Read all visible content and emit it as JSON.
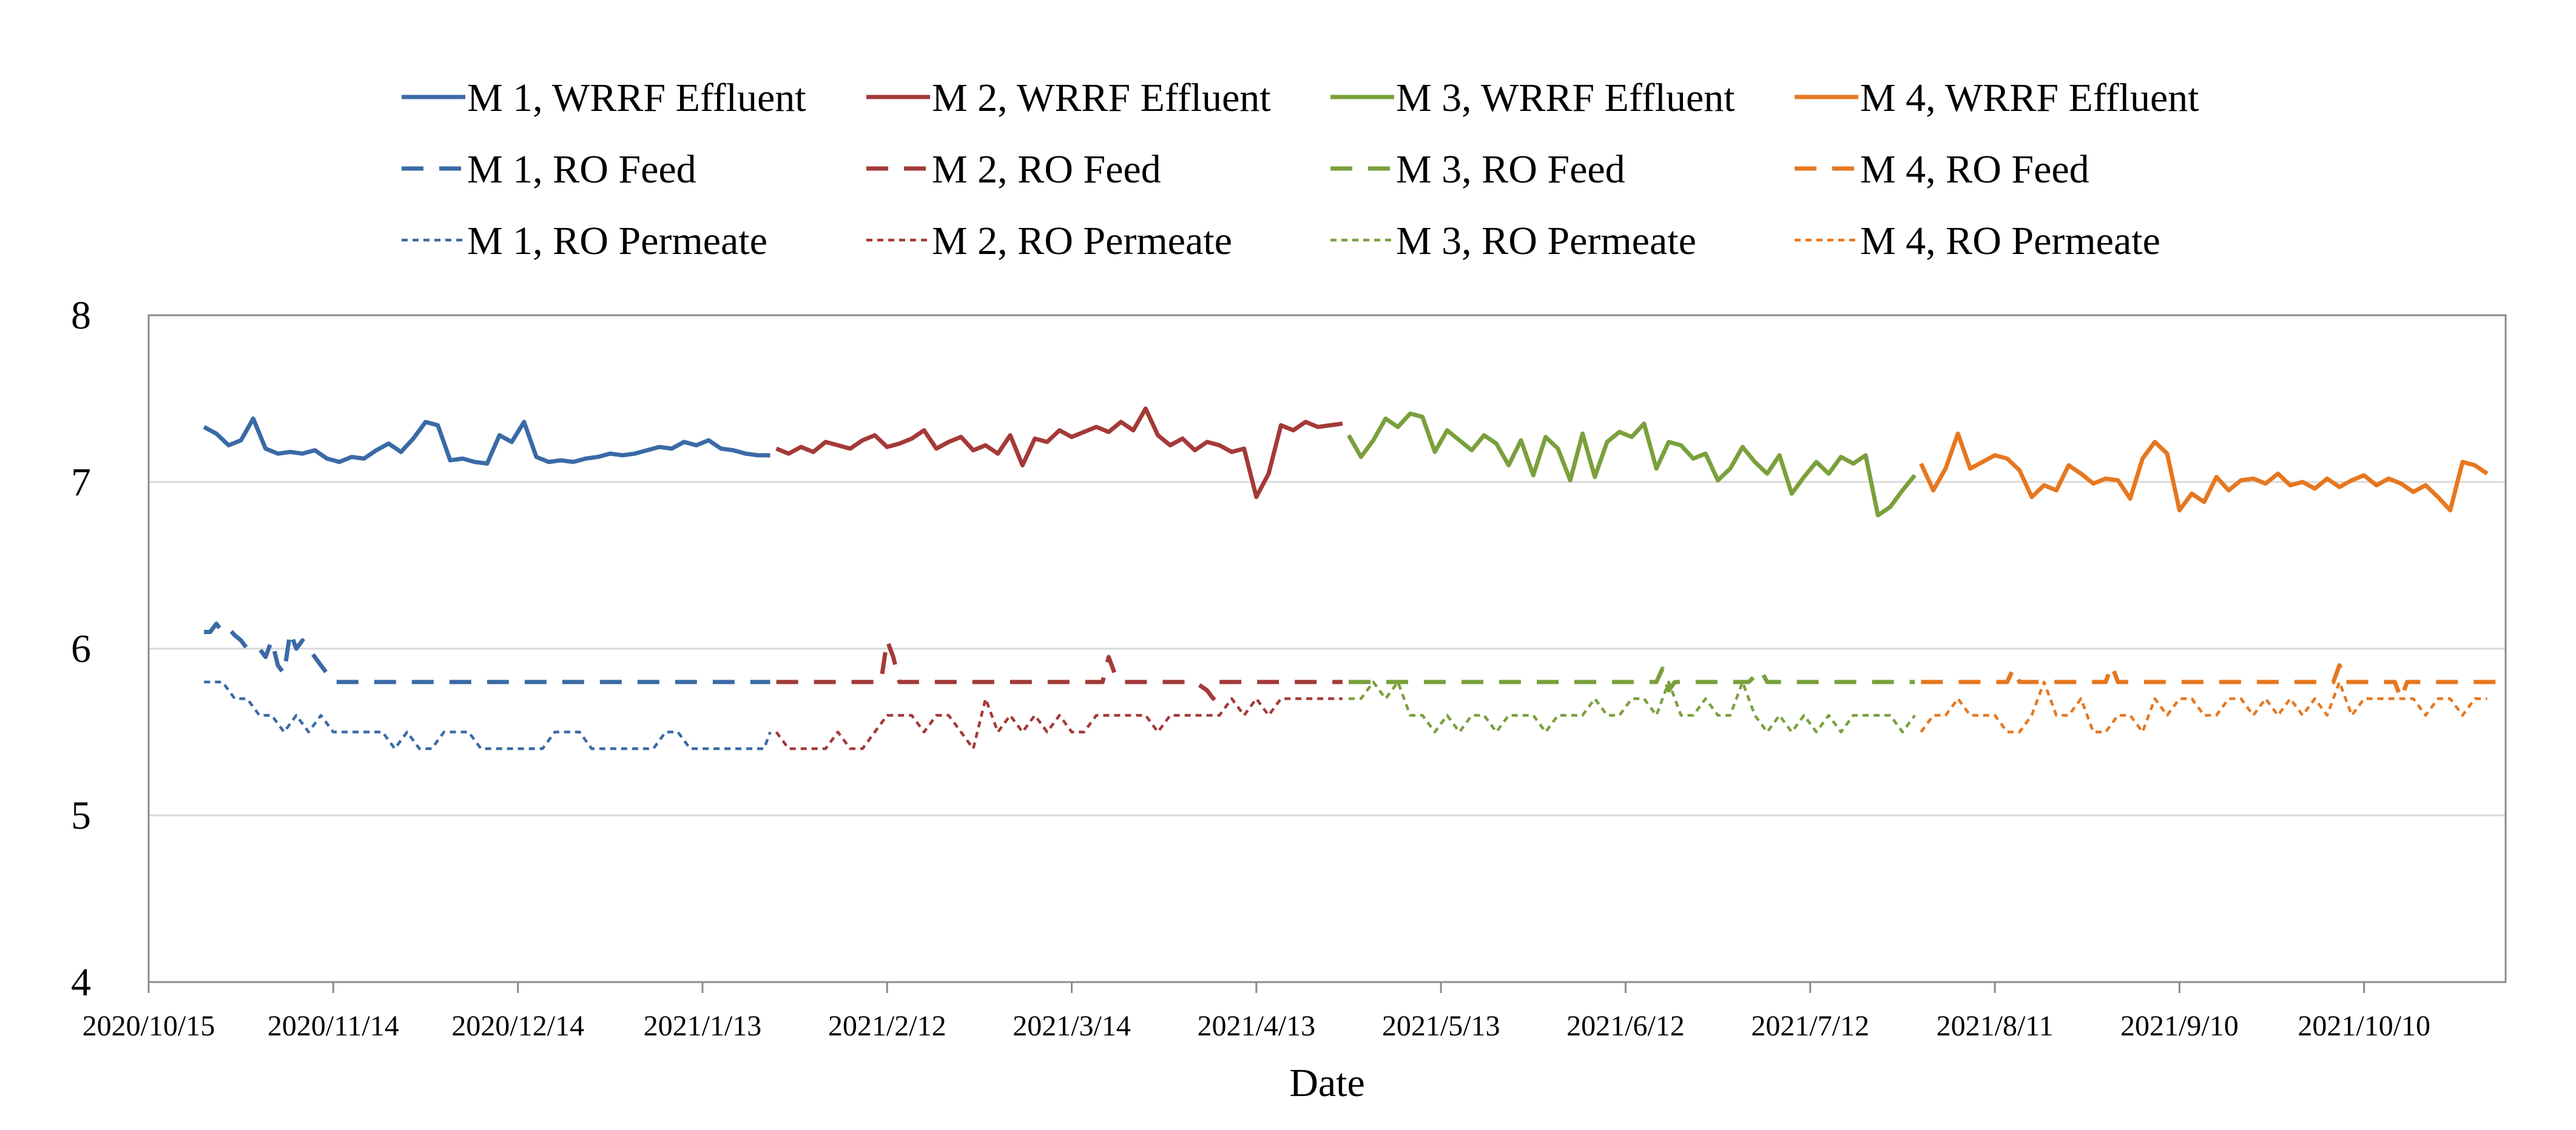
{
  "chart_data": {
    "type": "line",
    "title": "",
    "xlabel": "Date",
    "ylabel": "",
    "ylim": [
      4,
      8
    ],
    "yticks": [
      4,
      5,
      6,
      7,
      8
    ],
    "xlim_days": [
      0,
      383
    ],
    "xtick_labels": [
      "2020/10/15",
      "2020/11/14",
      "2020/12/14",
      "2021/1/13",
      "2021/2/12",
      "2021/3/14",
      "2021/4/13",
      "2021/5/13",
      "2021/6/12",
      "2021/7/12",
      "2021/8/11",
      "2021/9/10",
      "2021/10/10"
    ],
    "xtick_days": [
      0,
      30,
      60,
      90,
      120,
      150,
      180,
      210,
      240,
      270,
      300,
      330,
      360
    ],
    "x_unit": "days since 2020/10/15",
    "grid": "horizontal",
    "legend_position": "top",
    "colors": {
      "M1": "#3a6aa6",
      "M2": "#a33a38",
      "M3": "#7aa03c",
      "M4": "#e6771f"
    },
    "series": [
      {
        "name": "M 1, WRRF Effluent",
        "color": "#3a6aa6",
        "style": "solid",
        "x": [
          9,
          11,
          13,
          15,
          17,
          19,
          21,
          23,
          25,
          27,
          29,
          31,
          33,
          35,
          37,
          39,
          41,
          43,
          45,
          47,
          49,
          51,
          53,
          55,
          57,
          59,
          61,
          63,
          65,
          67,
          69,
          71,
          73,
          75,
          77,
          79,
          81,
          83,
          85,
          87,
          89,
          91,
          93,
          95,
          97,
          99,
          101
        ],
        "y": [
          7.33,
          7.29,
          7.22,
          7.25,
          7.38,
          7.2,
          7.17,
          7.18,
          7.17,
          7.19,
          7.14,
          7.12,
          7.15,
          7.14,
          7.19,
          7.23,
          7.18,
          7.26,
          7.36,
          7.34,
          7.13,
          7.14,
          7.12,
          7.11,
          7.28,
          7.24,
          7.36,
          7.15,
          7.12,
          7.13,
          7.12,
          7.14,
          7.15,
          7.17,
          7.16,
          7.17,
          7.19,
          7.21,
          7.2,
          7.24,
          7.22,
          7.25,
          7.2,
          7.19,
          7.17,
          7.16,
          7.16
        ]
      },
      {
        "name": "M 2, WRRF Effluent",
        "color": "#a33a38",
        "style": "solid",
        "x": [
          102,
          104,
          106,
          108,
          110,
          112,
          114,
          116,
          118,
          120,
          122,
          124,
          126,
          128,
          130,
          132,
          134,
          136,
          138,
          140,
          142,
          144,
          146,
          148,
          150,
          152,
          154,
          156,
          158,
          160,
          162,
          164,
          166,
          168,
          170,
          172,
          174,
          176,
          178,
          180,
          182,
          184,
          186,
          188,
          190,
          192,
          194
        ],
        "y": [
          7.2,
          7.17,
          7.21,
          7.18,
          7.24,
          7.22,
          7.2,
          7.25,
          7.28,
          7.21,
          7.23,
          7.26,
          7.31,
          7.2,
          7.24,
          7.27,
          7.19,
          7.22,
          7.17,
          7.28,
          7.1,
          7.26,
          7.24,
          7.31,
          7.27,
          7.3,
          7.33,
          7.3,
          7.36,
          7.31,
          7.44,
          7.28,
          7.22,
          7.26,
          7.19,
          7.24,
          7.22,
          7.18,
          7.2,
          6.91,
          7.05,
          7.34,
          7.31,
          7.36,
          7.33,
          7.34,
          7.35
        ]
      },
      {
        "name": "M 3, WRRF Effluent",
        "color": "#7aa03c",
        "style": "solid",
        "x": [
          195,
          197,
          199,
          201,
          203,
          205,
          207,
          209,
          211,
          213,
          215,
          217,
          219,
          221,
          223,
          225,
          227,
          229,
          231,
          233,
          235,
          237,
          239,
          241,
          243,
          245,
          247,
          249,
          251,
          253,
          255,
          257,
          259,
          261,
          263,
          265,
          267,
          269,
          271,
          273,
          275,
          277,
          279,
          281,
          283,
          285,
          287
        ],
        "y": [
          7.28,
          7.15,
          7.25,
          7.38,
          7.33,
          7.41,
          7.39,
          7.18,
          7.31,
          7.25,
          7.19,
          7.28,
          7.23,
          7.1,
          7.25,
          7.04,
          7.27,
          7.2,
          7.01,
          7.29,
          7.03,
          7.24,
          7.3,
          7.27,
          7.35,
          7.08,
          7.24,
          7.22,
          7.14,
          7.17,
          7.01,
          7.08,
          7.21,
          7.12,
          7.05,
          7.16,
          6.93,
          7.03,
          7.12,
          7.05,
          7.15,
          7.11,
          7.16,
          6.8,
          6.85,
          6.95,
          7.04
        ]
      },
      {
        "name": "M 4, WRRF Effluent",
        "color": "#e6771f",
        "style": "solid",
        "x": [
          288,
          290,
          292,
          294,
          296,
          298,
          300,
          302,
          304,
          306,
          308,
          310,
          312,
          314,
          316,
          318,
          320,
          322,
          324,
          326,
          328,
          330,
          332,
          334,
          336,
          338,
          340,
          342,
          344,
          346,
          348,
          350,
          352,
          354,
          356,
          358,
          360,
          362,
          364,
          366,
          368,
          370,
          372,
          374,
          376,
          378,
          380
        ],
        "y": [
          7.11,
          6.95,
          7.08,
          7.29,
          7.08,
          7.12,
          7.16,
          7.14,
          7.07,
          6.91,
          6.98,
          6.95,
          7.1,
          7.05,
          6.99,
          7.02,
          7.01,
          6.9,
          7.14,
          7.24,
          7.17,
          6.83,
          6.93,
          6.88,
          7.03,
          6.95,
          7.01,
          7.02,
          6.99,
          7.05,
          6.98,
          7.0,
          6.96,
          7.02,
          6.97,
          7.01,
          7.04,
          6.98,
          7.02,
          6.99,
          6.94,
          6.98,
          6.91,
          6.83,
          7.12,
          7.1,
          7.05
        ]
      },
      {
        "name": "M 1, RO Feed",
        "color": "#3a6aa6",
        "style": "dash",
        "x": [
          9,
          10,
          11,
          12,
          13,
          14,
          15,
          16,
          17,
          18,
          19,
          20,
          21,
          22,
          23,
          24,
          25,
          26,
          27,
          28,
          29,
          30,
          40,
          50,
          60,
          70,
          80,
          90,
          95,
          101
        ],
        "y": [
          6.1,
          6.1,
          6.15,
          6.1,
          6.12,
          6.08,
          6.05,
          6.0,
          6.0,
          6.0,
          5.95,
          6.05,
          5.9,
          5.85,
          6.1,
          6.0,
          6.05,
          6.0,
          5.95,
          5.9,
          5.85,
          5.8,
          5.8,
          5.8,
          5.8,
          5.8,
          5.8,
          5.8,
          5.8,
          5.8
        ]
      },
      {
        "name": "M 2, RO Feed",
        "color": "#a33a38",
        "style": "dash",
        "x": [
          102,
          110,
          115,
          119,
          120,
          121,
          122,
          130,
          140,
          150,
          155,
          156,
          157,
          158,
          165,
          170,
          172,
          173,
          174,
          180,
          190,
          194
        ],
        "y": [
          5.8,
          5.8,
          5.8,
          5.8,
          6.05,
          5.95,
          5.8,
          5.8,
          5.8,
          5.8,
          5.8,
          5.95,
          5.85,
          5.8,
          5.8,
          5.8,
          5.75,
          5.7,
          5.8,
          5.8,
          5.8,
          5.8
        ]
      },
      {
        "name": "M 3, RO Feed",
        "color": "#7aa03c",
        "style": "dash",
        "x": [
          195,
          200,
          210,
          220,
          230,
          240,
          245,
          246,
          247,
          248,
          255,
          260,
          262,
          263,
          264,
          270,
          280,
          287
        ],
        "y": [
          5.8,
          5.8,
          5.8,
          5.8,
          5.8,
          5.8,
          5.8,
          5.88,
          5.75,
          5.8,
          5.8,
          5.8,
          5.87,
          5.8,
          5.8,
          5.8,
          5.8,
          5.8
        ]
      },
      {
        "name": "M 4, RO Feed",
        "color": "#e6771f",
        "style": "dash",
        "x": [
          288,
          300,
          302,
          303,
          304,
          310,
          318,
          319,
          320,
          330,
          350,
          355,
          356,
          357,
          365,
          366,
          367,
          374,
          375,
          376,
          383
        ],
        "y": [
          5.8,
          5.8,
          5.8,
          5.88,
          5.8,
          5.8,
          5.8,
          5.9,
          5.8,
          5.8,
          5.8,
          5.8,
          5.9,
          5.8,
          5.8,
          5.7,
          5.8,
          5.8,
          5.8,
          5.8,
          5.8
        ]
      },
      {
        "name": "M 1, RO Permeate",
        "color": "#3a6aa6",
        "style": "dot",
        "x": [
          9,
          12,
          14,
          16,
          18,
          20,
          22,
          24,
          26,
          28,
          30,
          32,
          34,
          36,
          38,
          40,
          42,
          44,
          46,
          48,
          50,
          52,
          54,
          56,
          58,
          60,
          62,
          64,
          66,
          68,
          70,
          72,
          74,
          76,
          78,
          80,
          82,
          84,
          86,
          88,
          90,
          92,
          94,
          96,
          98,
          100,
          101
        ],
        "y": [
          5.8,
          5.8,
          5.7,
          5.7,
          5.6,
          5.6,
          5.5,
          5.6,
          5.5,
          5.6,
          5.5,
          5.5,
          5.5,
          5.5,
          5.5,
          5.4,
          5.5,
          5.4,
          5.4,
          5.5,
          5.5,
          5.5,
          5.4,
          5.4,
          5.4,
          5.4,
          5.4,
          5.4,
          5.5,
          5.5,
          5.5,
          5.4,
          5.4,
          5.4,
          5.4,
          5.4,
          5.4,
          5.5,
          5.5,
          5.4,
          5.4,
          5.4,
          5.4,
          5.4,
          5.4,
          5.4,
          5.5
        ]
      },
      {
        "name": "M 2, RO Permeate",
        "color": "#a33a38",
        "style": "dot",
        "x": [
          102,
          104,
          106,
          108,
          110,
          112,
          114,
          116,
          118,
          120,
          122,
          124,
          126,
          128,
          130,
          132,
          134,
          136,
          138,
          140,
          142,
          144,
          146,
          148,
          150,
          152,
          154,
          156,
          158,
          160,
          162,
          164,
          166,
          168,
          170,
          172,
          174,
          176,
          178,
          180,
          182,
          184,
          186,
          188,
          190,
          192,
          194
        ],
        "y": [
          5.5,
          5.4,
          5.4,
          5.4,
          5.4,
          5.5,
          5.4,
          5.4,
          5.5,
          5.6,
          5.6,
          5.6,
          5.5,
          5.6,
          5.6,
          5.5,
          5.4,
          5.7,
          5.5,
          5.6,
          5.5,
          5.6,
          5.5,
          5.6,
          5.5,
          5.5,
          5.6,
          5.6,
          5.6,
          5.6,
          5.6,
          5.5,
          5.6,
          5.6,
          5.6,
          5.6,
          5.6,
          5.7,
          5.6,
          5.7,
          5.6,
          5.7,
          5.7,
          5.7,
          5.7,
          5.7,
          5.7
        ]
      },
      {
        "name": "M 3, RO Permeate",
        "color": "#7aa03c",
        "style": "dot",
        "x": [
          195,
          197,
          199,
          201,
          203,
          205,
          207,
          209,
          211,
          213,
          215,
          217,
          219,
          221,
          223,
          225,
          227,
          229,
          231,
          233,
          235,
          237,
          239,
          241,
          243,
          245,
          247,
          249,
          251,
          253,
          255,
          257,
          259,
          261,
          263,
          265,
          267,
          269,
          271,
          273,
          275,
          277,
          279,
          281,
          283,
          285,
          287
        ],
        "y": [
          5.7,
          5.7,
          5.8,
          5.7,
          5.8,
          5.6,
          5.6,
          5.5,
          5.6,
          5.5,
          5.6,
          5.6,
          5.5,
          5.6,
          5.6,
          5.6,
          5.5,
          5.6,
          5.6,
          5.6,
          5.7,
          5.6,
          5.6,
          5.7,
          5.7,
          5.6,
          5.8,
          5.6,
          5.6,
          5.7,
          5.6,
          5.6,
          5.8,
          5.6,
          5.5,
          5.6,
          5.5,
          5.6,
          5.5,
          5.6,
          5.5,
          5.6,
          5.6,
          5.6,
          5.6,
          5.5,
          5.6
        ]
      },
      {
        "name": "M 4, RO Permeate",
        "color": "#e6771f",
        "style": "dot",
        "x": [
          288,
          290,
          292,
          294,
          296,
          298,
          300,
          302,
          304,
          306,
          308,
          310,
          312,
          314,
          316,
          318,
          320,
          322,
          324,
          326,
          328,
          330,
          332,
          334,
          336,
          338,
          340,
          342,
          344,
          346,
          348,
          350,
          352,
          354,
          356,
          358,
          360,
          362,
          364,
          366,
          368,
          370,
          372,
          374,
          376,
          378,
          380
        ],
        "y": [
          5.5,
          5.6,
          5.6,
          5.7,
          5.6,
          5.6,
          5.6,
          5.5,
          5.5,
          5.6,
          5.8,
          5.6,
          5.6,
          5.7,
          5.5,
          5.5,
          5.6,
          5.6,
          5.5,
          5.7,
          5.6,
          5.7,
          5.7,
          5.6,
          5.6,
          5.7,
          5.7,
          5.6,
          5.7,
          5.6,
          5.7,
          5.6,
          5.7,
          5.6,
          5.8,
          5.6,
          5.7,
          5.7,
          5.7,
          5.7,
          5.7,
          5.6,
          5.7,
          5.7,
          5.6,
          5.7,
          5.7
        ]
      }
    ]
  }
}
